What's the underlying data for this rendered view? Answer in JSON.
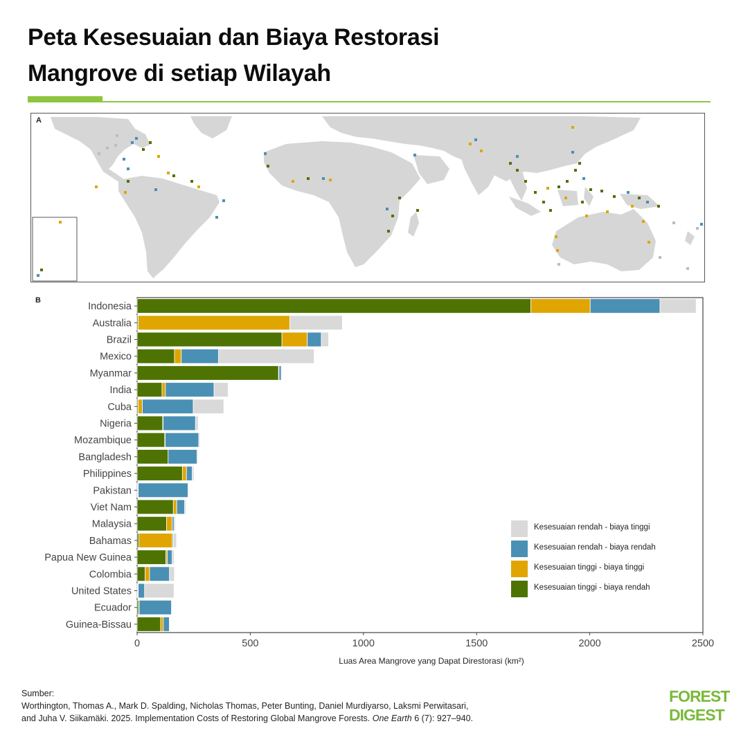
{
  "header": {
    "title_line1": "Peta Kesesuaian dan Biaya Restorasi",
    "title_line2": "Mangrove di setiap Wilayah"
  },
  "map_panel": {
    "label": "A"
  },
  "chart_panel": {
    "label": "B"
  },
  "colors": {
    "low_high": "#d9d9d9",
    "low_low": "#4a90b4",
    "high_high": "#e0a500",
    "high_low": "#4e7303",
    "brand_green": "#8cc63f",
    "land": "#d6d6d6"
  },
  "chart_data": {
    "type": "bar",
    "orientation": "horizontal",
    "stacked": true,
    "categories": [
      "Indonesia",
      "Australia",
      "Brazil",
      "Mexico",
      "Myanmar",
      "India",
      "Cuba",
      "Nigeria",
      "Mozambique",
      "Bangladesh",
      "Philippines",
      "Pakistan",
      "Viet Nam",
      "Malaysia",
      "Bahamas",
      "Papua New Guinea",
      "Colombia",
      "United States",
      "Ecuador",
      "Guinea-Bissau"
    ],
    "series": [
      {
        "name": "Kesesuaian tinggi - biaya rendah",
        "color": "#4e7303",
        "values": [
          1740,
          5,
          640,
          165,
          625,
          110,
          5,
          113,
          122,
          137,
          200,
          3,
          160,
          130,
          8,
          127,
          35,
          3,
          7,
          104
        ]
      },
      {
        "name": "Kesesuaian tinggi - biaya tinggi",
        "color": "#e0a500",
        "values": [
          262,
          670,
          112,
          30,
          2,
          15,
          18,
          2,
          2,
          0,
          18,
          2,
          15,
          25,
          148,
          6,
          20,
          2,
          2,
          12
        ]
      },
      {
        "name": "Kesesuaian rendah - biaya rendah",
        "color": "#4a90b4",
        "values": [
          308,
          0,
          62,
          165,
          10,
          215,
          225,
          143,
          148,
          128,
          25,
          220,
          35,
          8,
          4,
          22,
          88,
          28,
          143,
          26
        ]
      },
      {
        "name": "Kesesuaian rendah - biaya tinggi",
        "color": "#d9d9d9",
        "values": [
          160,
          232,
          32,
          422,
          3,
          62,
          135,
          12,
          5,
          4,
          8,
          3,
          6,
          6,
          14,
          8,
          22,
          130,
          2,
          3
        ]
      }
    ],
    "legend_order": [
      "Kesesuaian rendah - biaya tinggi",
      "Kesesuaian rendah - biaya rendah",
      "Kesesuaian tinggi - biaya tinggi",
      "Kesesuaian tinggi - biaya rendah"
    ],
    "legend_colors": [
      "#d9d9d9",
      "#4a90b4",
      "#e0a500",
      "#4e7303"
    ],
    "xlabel": "Luas Area Mangrove yang Dapat Direstorasi (km²)",
    "ylabel": "",
    "xlim": [
      0,
      2500
    ],
    "xticks": [
      "0",
      "500",
      "1000",
      "1500",
      "2000",
      "2500"
    ],
    "grid": false,
    "legend_position": "bottom-right"
  },
  "source": {
    "heading": "Sumber:",
    "line1": "Worthington, Thomas A., Mark D. Spalding, Nicholas Thomas, Peter Bunting, Daniel Murdiyarso, Laksmi Perwitasari,",
    "line2_pre": "and Juha V. Siikamäki. 2025. Implementation Costs of Restoring Global Mangrove Forests.",
    "line2_journal": "One Earth",
    "line2_post": "6 (7): 927–940."
  },
  "logo": {
    "line1": "FOREST",
    "line2": "DIGEST"
  }
}
